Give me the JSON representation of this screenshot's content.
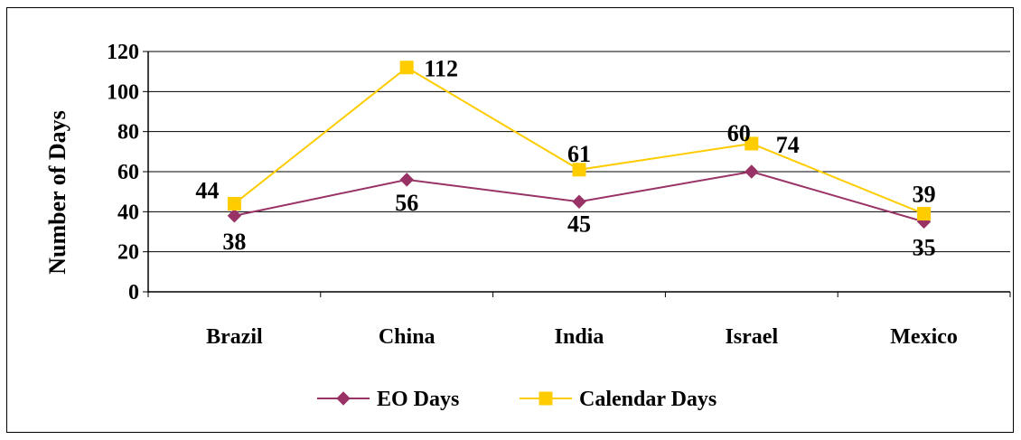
{
  "chart_data": {
    "type": "line",
    "categories": [
      "Brazil",
      "China",
      "India",
      "Israel",
      "Mexico"
    ],
    "series": [
      {
        "name": "EO Days",
        "values": [
          38,
          56,
          45,
          60,
          35
        ],
        "color": "#993366",
        "marker": "diamond"
      },
      {
        "name": "Calendar Days",
        "values": [
          44,
          112,
          61,
          74,
          39
        ],
        "color": "#FFCC00",
        "marker": "square"
      }
    ],
    "title": "",
    "xlabel": "",
    "ylabel": "Number of Days",
    "ylim": [
      0,
      120
    ],
    "yticks": [
      "0",
      "20",
      "40",
      "60",
      "80",
      "100",
      "120"
    ],
    "grid": true,
    "legend": "bottom",
    "data_labels": true
  }
}
